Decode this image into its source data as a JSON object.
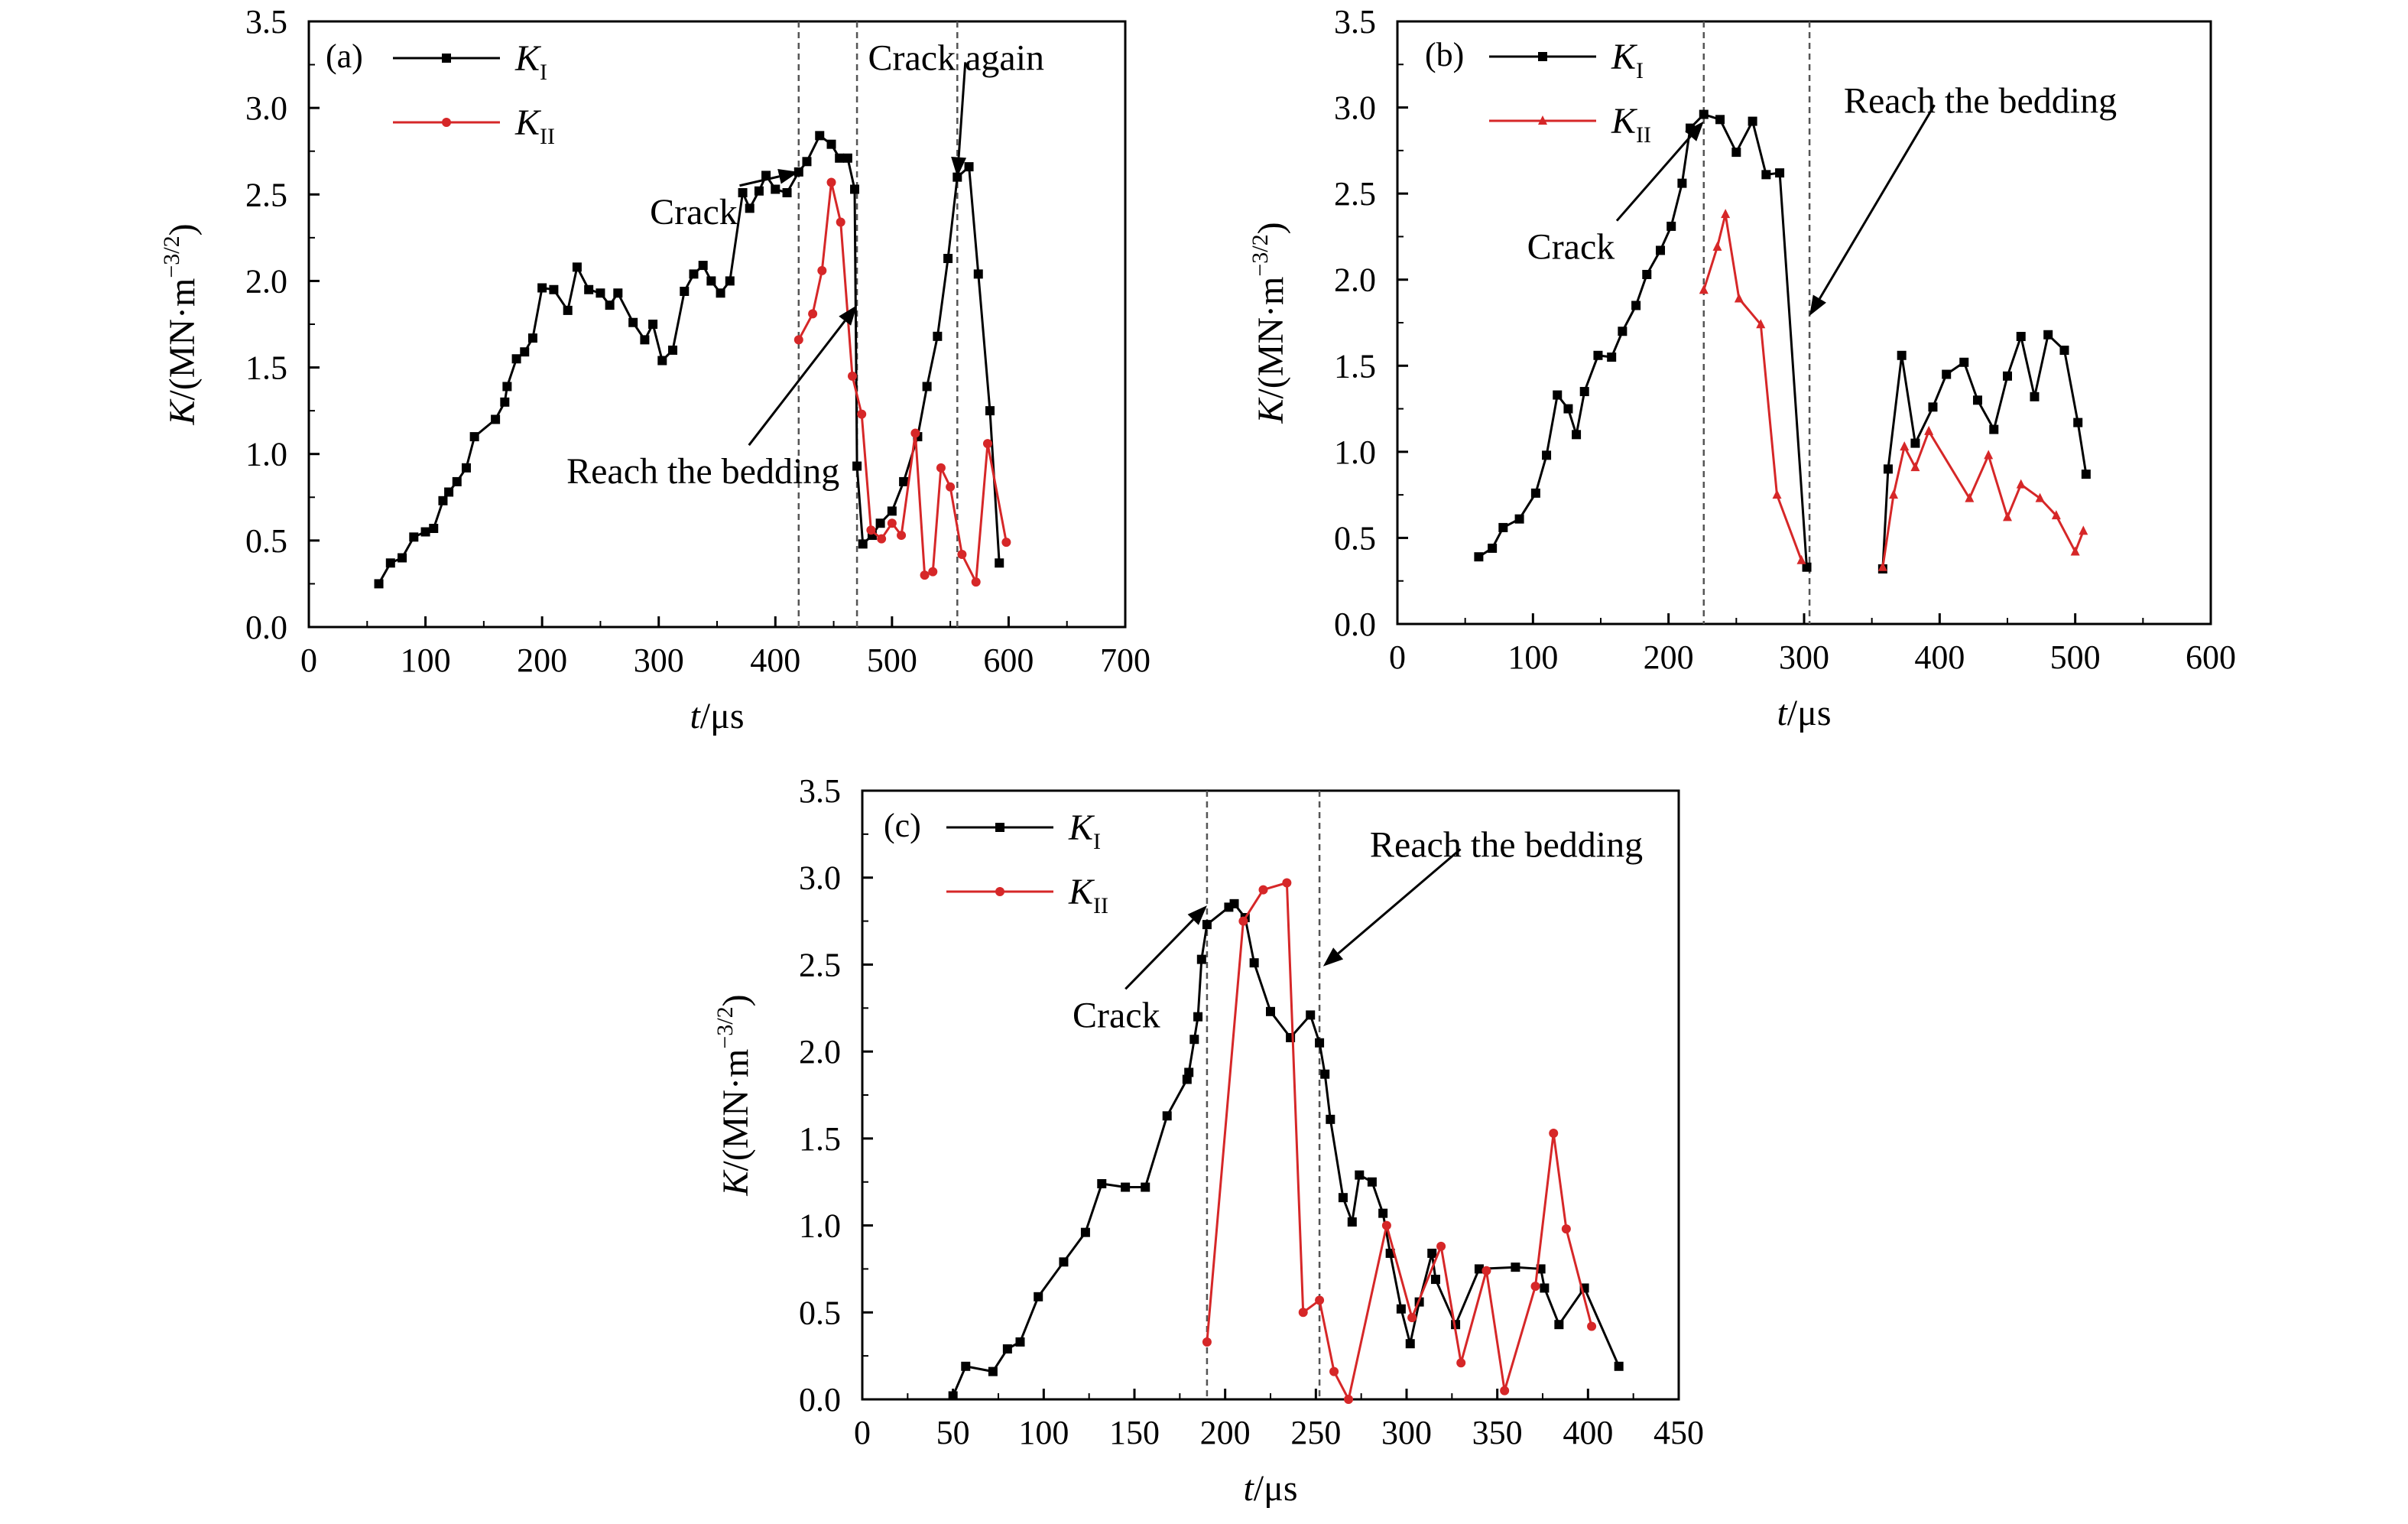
{
  "chart_data": [
    {
      "type": "line",
      "panel_label": "(a)",
      "xlabel_italic": "t",
      "xlabel_rest": "/μs",
      "ylabel_italic": "K",
      "ylabel_rest": "/(MN·m",
      "ylabel_exp": "−3/2",
      "ylabel_close": ")",
      "xlim": [
        0,
        700
      ],
      "ylim": [
        0,
        3.5
      ],
      "xticks": [
        0,
        100,
        200,
        300,
        400,
        500,
        600,
        700
      ],
      "yticks": [
        "0.0",
        "0.5",
        "1.0",
        "1.5",
        "2.0",
        "2.5",
        "3.0",
        "3.5"
      ],
      "grid": false,
      "legend_position": "top-left",
      "series": [
        {
          "name": "K",
          "subscript": "I",
          "color": "#000000",
          "marker": "square",
          "points": [
            [
              60,
              0.25
            ],
            [
              70,
              0.37
            ],
            [
              80,
              0.4
            ],
            [
              90,
              0.52
            ],
            [
              100,
              0.55
            ],
            [
              107,
              0.57
            ],
            [
              115,
              0.73
            ],
            [
              120,
              0.78
            ],
            [
              127,
              0.84
            ],
            [
              135,
              0.92
            ],
            [
              142,
              1.1
            ],
            [
              160,
              1.2
            ],
            [
              168,
              1.3
            ],
            [
              170,
              1.39
            ],
            [
              178,
              1.55
            ],
            [
              185,
              1.59
            ],
            [
              192,
              1.67
            ],
            [
              200,
              1.96
            ],
            [
              210,
              1.95
            ],
            [
              222,
              1.83
            ],
            [
              230,
              2.08
            ],
            [
              240,
              1.95
            ],
            [
              250,
              1.93
            ],
            [
              258,
              1.86
            ],
            [
              265,
              1.93
            ],
            [
              278,
              1.76
            ],
            [
              288,
              1.66
            ],
            [
              295,
              1.75
            ],
            [
              303,
              1.54
            ],
            [
              312,
              1.6
            ],
            [
              322,
              1.94
            ],
            [
              330,
              2.04
            ],
            [
              338,
              2.09
            ],
            [
              345,
              2.0
            ],
            [
              353,
              1.93
            ],
            [
              361,
              2.0
            ],
            [
              372,
              2.51
            ],
            [
              378,
              2.42
            ],
            [
              386,
              2.52
            ],
            [
              392,
              2.61
            ],
            [
              400,
              2.53
            ],
            [
              410,
              2.51
            ],
            [
              420,
              2.63
            ],
            [
              427,
              2.69
            ],
            [
              438,
              2.84
            ],
            [
              448,
              2.79
            ],
            [
              455,
              2.71
            ],
            [
              462,
              2.71
            ],
            [
              468,
              2.53
            ],
            [
              470,
              0.93
            ],
            [
              475,
              0.48
            ],
            [
              483,
              0.53
            ],
            [
              490,
              0.6
            ],
            [
              500,
              0.67
            ],
            [
              510,
              0.84
            ],
            [
              522,
              1.1
            ],
            [
              530,
              1.39
            ],
            [
              539,
              1.68
            ],
            [
              548,
              2.13
            ],
            [
              556,
              2.6
            ],
            [
              566,
              2.66
            ],
            [
              574,
              2.04
            ],
            [
              584,
              1.25
            ],
            [
              592,
              0.37
            ]
          ]
        },
        {
          "name": "K",
          "subscript": "II",
          "color": "#d62728",
          "marker": "circle",
          "points": [
            [
              420,
              1.66
            ],
            [
              432,
              1.81
            ],
            [
              440,
              2.06
            ],
            [
              448,
              2.57
            ],
            [
              456,
              2.34
            ],
            [
              466,
              1.45
            ],
            [
              474,
              1.23
            ],
            [
              482,
              0.56
            ],
            [
              491,
              0.51
            ],
            [
              500,
              0.6
            ],
            [
              508,
              0.53
            ],
            [
              520,
              1.12
            ],
            [
              528,
              0.3
            ],
            [
              535,
              0.32
            ],
            [
              542,
              0.92
            ],
            [
              550,
              0.81
            ],
            [
              560,
              0.42
            ],
            [
              572,
              0.26
            ],
            [
              582,
              1.06
            ],
            [
              598,
              0.49
            ]
          ]
        }
      ],
      "vlines": [
        420,
        470,
        556
      ],
      "annotations": [
        {
          "text": "Crack",
          "x": 330,
          "y": 2.33,
          "arrow_to": [
            420,
            2.63
          ]
        },
        {
          "text": "Crack again",
          "x": 555,
          "y": 3.22,
          "arrow_to": [
            556,
            2.6
          ]
        },
        {
          "text": "Reach the bedding",
          "x": 338,
          "y": 0.83,
          "arrow_to": [
            470,
            1.86
          ]
        }
      ]
    },
    {
      "type": "line",
      "panel_label": "(b)",
      "xlabel_italic": "t",
      "xlabel_rest": "/μs",
      "ylabel_italic": "K",
      "ylabel_rest": "/(MN·m",
      "ylabel_exp": "−3/2",
      "ylabel_close": ")",
      "xlim": [
        0,
        600
      ],
      "ylim": [
        0,
        3.5
      ],
      "xticks": [
        0,
        100,
        200,
        300,
        400,
        500,
        600
      ],
      "yticks": [
        "0.0",
        "0.5",
        "1.0",
        "1.5",
        "2.0",
        "2.5",
        "3.0",
        "3.5"
      ],
      "grid": false,
      "legend_position": "top-left",
      "series": [
        {
          "name": "K",
          "subscript": "I",
          "color": "#000000",
          "marker": "square",
          "points": [
            [
              60,
              0.39
            ],
            [
              70,
              0.44
            ],
            [
              78,
              0.56
            ],
            [
              90,
              0.61
            ],
            [
              102,
              0.76
            ],
            [
              110,
              0.98
            ],
            [
              118,
              1.33
            ],
            [
              126,
              1.25
            ],
            [
              132,
              1.1
            ],
            [
              138,
              1.35
            ],
            [
              148,
              1.56
            ],
            [
              158,
              1.55
            ],
            [
              166,
              1.7
            ],
            [
              176,
              1.85
            ],
            [
              184,
              2.03
            ],
            [
              194,
              2.17
            ],
            [
              202,
              2.31
            ],
            [
              210,
              2.56
            ],
            [
              216,
              2.88
            ],
            [
              226,
              2.96
            ],
            [
              238,
              2.93
            ],
            [
              250,
              2.74
            ],
            [
              262,
              2.92
            ],
            [
              272,
              2.61
            ],
            [
              282,
              2.62
            ],
            [
              302,
              0.33
            ],
            [
              358,
              0.32
            ],
            [
              362,
              0.9
            ],
            [
              372,
              1.56
            ],
            [
              382,
              1.05
            ],
            [
              395,
              1.26
            ],
            [
              405,
              1.45
            ],
            [
              418,
              1.52
            ],
            [
              428,
              1.3
            ],
            [
              440,
              1.13
            ],
            [
              450,
              1.44
            ],
            [
              460,
              1.67
            ],
            [
              470,
              1.32
            ],
            [
              480,
              1.68
            ],
            [
              492,
              1.59
            ],
            [
              502,
              1.17
            ],
            [
              508,
              0.87
            ]
          ]
        },
        {
          "name": "K",
          "subscript": "II",
          "color": "#d62728",
          "marker": "triangle",
          "points": [
            [
              226,
              1.94
            ],
            [
              236,
              2.19
            ],
            [
              242,
              2.38
            ],
            [
              252,
              1.89
            ],
            [
              268,
              1.74
            ],
            [
              280,
              0.75
            ],
            [
              298,
              0.37
            ],
            [
              358,
              0.33
            ],
            [
              366,
              0.75
            ],
            [
              374,
              1.03
            ],
            [
              382,
              0.91
            ],
            [
              392,
              1.12
            ],
            [
              422,
              0.73
            ],
            [
              436,
              0.98
            ],
            [
              450,
              0.62
            ],
            [
              460,
              0.81
            ],
            [
              474,
              0.73
            ],
            [
              486,
              0.63
            ],
            [
              500,
              0.42
            ],
            [
              506,
              0.54
            ]
          ]
        }
      ],
      "vlines": [
        226,
        304
      ],
      "annotations": [
        {
          "text": "Crack",
          "x": 128,
          "y": 2.12,
          "arrow_to": [
            226,
            2.92
          ]
        },
        {
          "text": "Reach the bedding",
          "x": 430,
          "y": 2.97,
          "arrow_to": [
            304,
            1.79
          ]
        }
      ]
    },
    {
      "type": "line",
      "panel_label": "(c)",
      "xlabel_italic": "t",
      "xlabel_rest": "/μs",
      "ylabel_italic": "K",
      "ylabel_rest": "/(MN·m",
      "ylabel_exp": "−3/2",
      "ylabel_close": ")",
      "xlim": [
        0,
        450
      ],
      "ylim": [
        0,
        3.5
      ],
      "xticks": [
        0,
        50,
        100,
        150,
        200,
        250,
        300,
        350,
        400,
        450
      ],
      "yticks": [
        "0.0",
        "0.5",
        "1.0",
        "1.5",
        "2.0",
        "2.5",
        "3.0",
        "3.5"
      ],
      "grid": false,
      "legend_position": "top-left",
      "series": [
        {
          "name": "K",
          "subscript": "I",
          "color": "#000000",
          "marker": "square",
          "points": [
            [
              50,
              0.02
            ],
            [
              57,
              0.19
            ],
            [
              72,
              0.16
            ],
            [
              80,
              0.29
            ],
            [
              87,
              0.33
            ],
            [
              97,
              0.59
            ],
            [
              111,
              0.79
            ],
            [
              123,
              0.96
            ],
            [
              132,
              1.24
            ],
            [
              145,
              1.22
            ],
            [
              156,
              1.22
            ],
            [
              168,
              1.63
            ],
            [
              179,
              1.84
            ],
            [
              180,
              1.88
            ],
            [
              183,
              2.07
            ],
            [
              185,
              2.2
            ],
            [
              187,
              2.53
            ],
            [
              190,
              2.73
            ],
            [
              202,
              2.83
            ],
            [
              205,
              2.85
            ],
            [
              211,
              2.77
            ],
            [
              216,
              2.51
            ],
            [
              225,
              2.23
            ],
            [
              236,
              2.08
            ],
            [
              247,
              2.21
            ],
            [
              252,
              2.05
            ],
            [
              255,
              1.87
            ],
            [
              258,
              1.61
            ],
            [
              265,
              1.16
            ],
            [
              270,
              1.02
            ],
            [
              274,
              1.29
            ],
            [
              281,
              1.25
            ],
            [
              287,
              1.07
            ],
            [
              291,
              0.84
            ],
            [
              297,
              0.52
            ],
            [
              302,
              0.32
            ],
            [
              307,
              0.56
            ],
            [
              314,
              0.84
            ],
            [
              316,
              0.69
            ],
            [
              327,
              0.43
            ],
            [
              340,
              0.75
            ],
            [
              360,
              0.76
            ],
            [
              374,
              0.75
            ],
            [
              376,
              0.64
            ],
            [
              384,
              0.43
            ],
            [
              398,
              0.64
            ],
            [
              417,
              0.19
            ]
          ]
        },
        {
          "name": "K",
          "subscript": "II",
          "color": "#d62728",
          "marker": "circle",
          "points": [
            [
              190,
              0.33
            ],
            [
              210,
              2.75
            ],
            [
              221,
              2.93
            ],
            [
              234,
              2.97
            ],
            [
              243,
              0.5
            ],
            [
              252,
              0.57
            ],
            [
              260,
              0.16
            ],
            [
              268,
              0.0
            ],
            [
              289,
              1.0
            ],
            [
              303,
              0.47
            ],
            [
              319,
              0.88
            ],
            [
              330,
              0.21
            ],
            [
              344,
              0.74
            ],
            [
              354,
              0.05
            ],
            [
              371,
              0.65
            ],
            [
              381,
              1.53
            ],
            [
              388,
              0.98
            ],
            [
              402,
              0.42
            ]
          ]
        }
      ],
      "vlines": [
        190,
        252
      ],
      "annotations": [
        {
          "text": "Crack",
          "x": 140,
          "y": 2.14,
          "arrow_to": [
            190,
            2.84
          ]
        },
        {
          "text": "Reach the bedding",
          "x": 355,
          "y": 3.12,
          "arrow_to": [
            254,
            2.49
          ]
        }
      ]
    }
  ]
}
